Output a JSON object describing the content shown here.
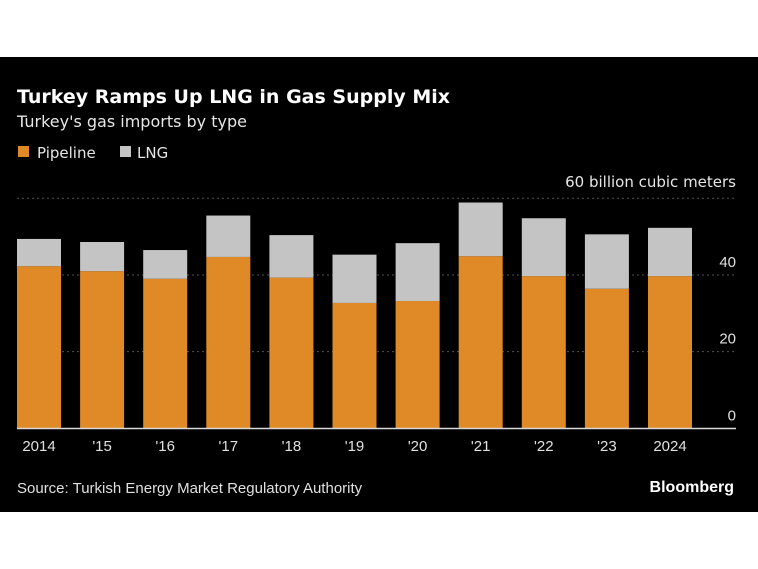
{
  "chart_data": {
    "type": "bar",
    "stacked": true,
    "title": "Turkey Ramps Up LNG in Gas Supply Mix",
    "subtitle": "Turkey's gas imports by type",
    "unit_label": "60 billion cubic meters",
    "categories": [
      "2014",
      "'15",
      "'16",
      "'17",
      "'18",
      "'19",
      "'20",
      "'21",
      "'22",
      "'23",
      "2024"
    ],
    "series": [
      {
        "name": "Pipeline",
        "color": "#e08a27",
        "values": [
          42.3,
          41.0,
          39.0,
          44.7,
          39.3,
          32.7,
          33.2,
          44.9,
          39.7,
          36.4,
          39.7
        ]
      },
      {
        "name": "LNG",
        "color": "#c4c4c4",
        "values": [
          7.1,
          7.6,
          7.5,
          10.8,
          11.1,
          12.6,
          15.1,
          14.0,
          15.1,
          14.2,
          12.6
        ]
      }
    ],
    "yticks": [
      "0",
      "20",
      "40"
    ],
    "ytick_values": [
      0,
      20,
      40,
      60
    ],
    "ylim": [
      0,
      60
    ],
    "grid": true,
    "legend_placement": "top-left",
    "source": "Source: Turkish Energy Market Regulatory Authority",
    "brand": "Bloomberg",
    "background": "#000000"
  }
}
